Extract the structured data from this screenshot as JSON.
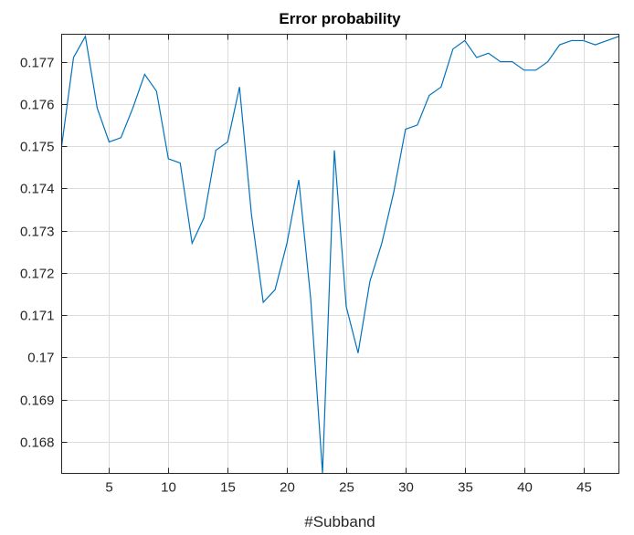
{
  "chart_data": {
    "type": "line",
    "title": "Error probability",
    "xlabel": "#Subband",
    "ylabel": "",
    "xlim": [
      1,
      48
    ],
    "ylim": [
      0.16725,
      0.17765
    ],
    "xticks": [
      5,
      10,
      15,
      20,
      25,
      30,
      35,
      40,
      45
    ],
    "xtick_labels": [
      "5",
      "10",
      "15",
      "20",
      "25",
      "30",
      "35",
      "40",
      "45"
    ],
    "yticks": [
      0.168,
      0.169,
      0.17,
      0.171,
      0.172,
      0.173,
      0.174,
      0.175,
      0.176,
      0.177
    ],
    "ytick_labels": [
      "0.168",
      "0.169",
      "0.17",
      "0.171",
      "0.172",
      "0.173",
      "0.174",
      "0.175",
      "0.176",
      "0.177"
    ],
    "grid": true,
    "legend": "none",
    "series": [
      {
        "color": "#0072bd",
        "x": [
          1,
          2,
          3,
          4,
          5,
          6,
          7,
          8,
          9,
          10,
          11,
          12,
          13,
          14,
          15,
          16,
          17,
          18,
          19,
          20,
          21,
          22,
          23,
          24,
          25,
          26,
          27,
          28,
          29,
          30,
          31,
          32,
          33,
          34,
          35,
          36,
          37,
          38,
          39,
          40,
          41,
          42,
          43,
          44,
          45,
          46,
          47,
          48
        ],
        "y": [
          0.175,
          0.1771,
          0.1776,
          0.1759,
          0.1751,
          0.1752,
          0.1759,
          0.1767,
          0.1763,
          0.1747,
          0.1746,
          0.1727,
          0.1733,
          0.1749,
          0.1751,
          0.1764,
          0.1734,
          0.1713,
          0.1716,
          0.1727,
          0.1742,
          0.1714,
          0.16725,
          0.1749,
          0.1712,
          0.1701,
          0.1718,
          0.1727,
          0.1739,
          0.1754,
          0.1755,
          0.1762,
          0.1764,
          0.1773,
          0.1775,
          0.1771,
          0.1772,
          0.177,
          0.177,
          0.1768,
          0.1768,
          0.177,
          0.1774,
          0.1775,
          0.1775,
          0.1774,
          0.1775,
          0.1776
        ]
      }
    ]
  }
}
